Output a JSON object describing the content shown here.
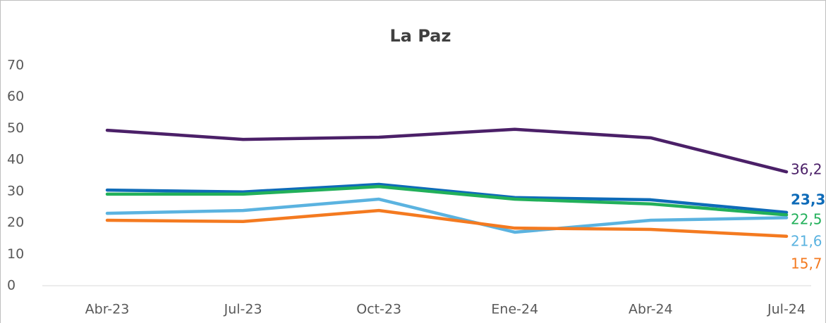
{
  "chart_data": {
    "type": "line",
    "title": "La Paz",
    "categories": [
      "Abr-23",
      "Jul-23",
      "Oct-23",
      "Ene-24",
      "Abr-24",
      "Jul-24"
    ],
    "series": [
      {
        "color": "#4b2068",
        "values": [
          49.4,
          46.5,
          47.2,
          49.7,
          47.0,
          36.2
        ],
        "value_labels": [
          null,
          null,
          null,
          null,
          null,
          "36,2"
        ]
      },
      {
        "color": "#0e6bb8",
        "values": [
          30.4,
          29.8,
          32.2,
          28.0,
          27.3,
          23.3
        ],
        "value_labels": [
          null,
          null,
          null,
          null,
          null,
          "23,3"
        ]
      },
      {
        "color": "#22b05a",
        "values": [
          29.1,
          29.1,
          31.5,
          27.5,
          26.0,
          22.5
        ],
        "value_labels": [
          null,
          null,
          null,
          null,
          null,
          "22,5"
        ]
      },
      {
        "color": "#5bb3e0",
        "values": [
          23.0,
          23.9,
          27.5,
          17.0,
          20.8,
          21.6
        ],
        "value_labels": [
          null,
          null,
          null,
          null,
          null,
          "21,6"
        ]
      },
      {
        "color": "#f47a20",
        "values": [
          20.8,
          20.4,
          23.9,
          18.3,
          17.9,
          15.7
        ],
        "value_labels": [
          null,
          null,
          null,
          null,
          null,
          "15,7"
        ]
      }
    ],
    "ylim": [
      0,
      70
    ],
    "yticks": [
      0,
      10,
      20,
      30,
      40,
      50,
      60,
      70
    ],
    "grid": false
  }
}
